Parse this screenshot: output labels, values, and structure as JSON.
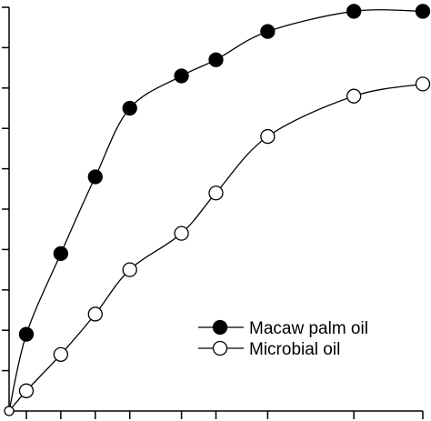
{
  "chart_data": {
    "type": "line",
    "title": "",
    "xlabel": "",
    "ylabel": "",
    "x": [
      0,
      1,
      3,
      5,
      7,
      10,
      12,
      15,
      20,
      24
    ],
    "xlim": [
      0,
      24
    ],
    "ylim": [
      0,
      100
    ],
    "grid": false,
    "series": [
      {
        "name": "Macaw palm oil",
        "marker": "filled-circle",
        "color": "#000000",
        "values": [
          0,
          19,
          39,
          58,
          75,
          83,
          87,
          94,
          99,
          99
        ]
      },
      {
        "name": "Microbial oil",
        "marker": "open-circle",
        "color": "#000000",
        "values": [
          0,
          5,
          14,
          24,
          35,
          44,
          54,
          68,
          78,
          81
        ]
      }
    ],
    "legend": {
      "placement": "bottom-right",
      "entries": [
        "Macaw palm oil",
        "Microbial oil"
      ]
    }
  }
}
